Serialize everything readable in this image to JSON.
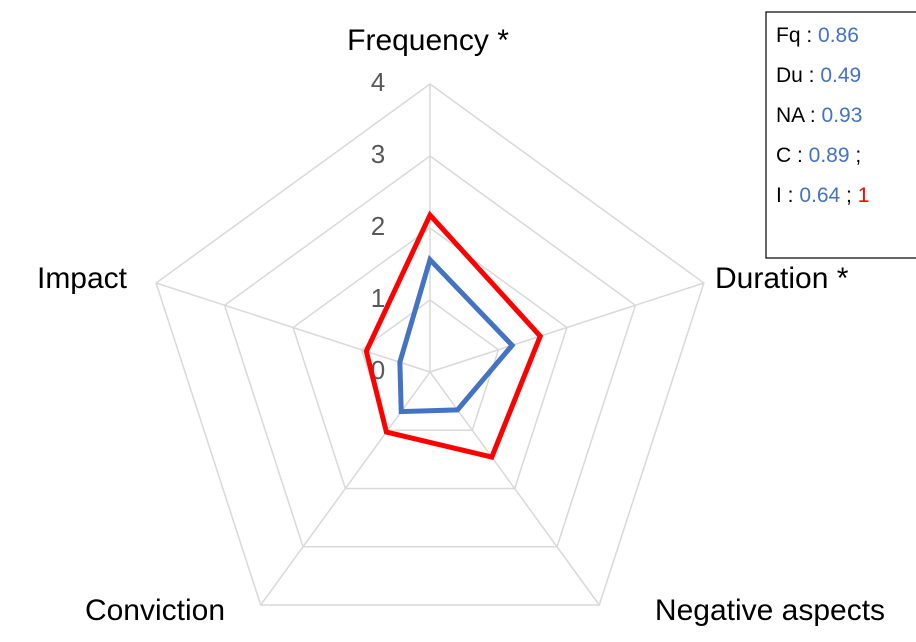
{
  "chart_data": {
    "type": "radar",
    "categories": [
      "Frequency *",
      "Duration *",
      "Negative aspects",
      "Conviction",
      "Impact"
    ],
    "rlim": [
      0,
      4
    ],
    "rticks": [
      0,
      1,
      2,
      3,
      4
    ],
    "grid": true,
    "series": [
      {
        "color": "#4472c4",
        "values": [
          1.56,
          1.2,
          0.65,
          0.68,
          0.44
        ]
      },
      {
        "color": "#ff0000",
        "values": [
          2.18,
          1.61,
          1.46,
          1.03,
          0.93
        ]
      }
    ],
    "annotations": [
      [
        {
          "text": "Fq : "
        },
        {
          "text": "0.86",
          "color": "#4472c4"
        }
      ],
      [
        {
          "text": "Du : "
        },
        {
          "text": "0.49",
          "color": "#4472c4"
        }
      ],
      [
        {
          "text": "NA : "
        },
        {
          "text": "0.93",
          "color": "#4472c4"
        }
      ],
      [
        {
          "text": "C : "
        },
        {
          "text": "0.89",
          "color": "#4472c4"
        },
        {
          "text": " ;"
        }
      ],
      [
        {
          "text": "I : "
        },
        {
          "text": "0.64",
          "color": "#4472c4"
        },
        {
          "text": " ; "
        },
        {
          "text": "1",
          "color": "#ff0000"
        }
      ]
    ]
  }
}
